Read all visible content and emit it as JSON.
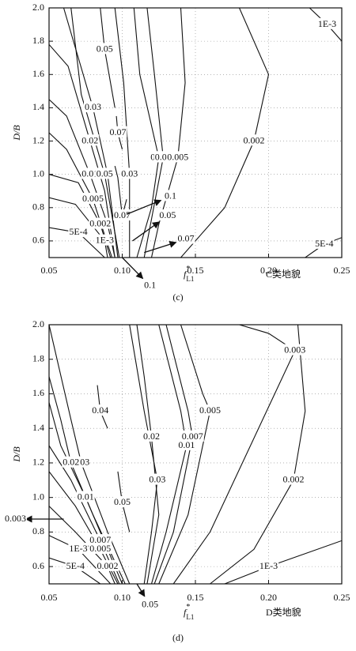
{
  "chart_data": [
    {
      "type": "contour",
      "caption": "(c)",
      "terrain": "C类地貌",
      "xlabel": "f",
      "xlabel_sup": "*",
      "xlabel_sub": "L1",
      "ylabel": "D/B",
      "color": "#111111",
      "grid": true,
      "xlim": [
        0.05,
        0.25
      ],
      "ylim": [
        0.5,
        2.0
      ],
      "xticks": [
        0.05,
        {
          "value": 0.1,
          "label": "0.10"
        },
        0.15,
        {
          "value": 0.2,
          "label": "0.20"
        },
        0.25
      ],
      "yticks": [
        0.6,
        0.8,
        {
          "value": 1.0,
          "label": "1.0"
        },
        1.2,
        1.4,
        1.6,
        1.8,
        {
          "value": 2.0,
          "label": "2.0"
        }
      ],
      "contours": [
        {
          "label": "0.03",
          "x": [
            0.06,
            0.065,
            0.08,
            0.09,
            0.097
          ],
          "y": [
            2.0,
            1.85,
            1.4,
            1.0,
            0.5
          ]
        },
        {
          "label": "0.02",
          "x": [
            0.05,
            0.063,
            0.078,
            0.088,
            0.095
          ],
          "y": [
            1.78,
            1.65,
            1.2,
            0.9,
            0.5
          ]
        },
        {
          "label": "0.01",
          "x": [
            0.05,
            0.062,
            0.078,
            0.09,
            0.095
          ],
          "y": [
            1.45,
            1.35,
            1.0,
            0.7,
            0.5
          ]
        },
        {
          "label": "0.005",
          "x": [
            0.05,
            0.062,
            0.08,
            0.093
          ],
          "y": [
            1.25,
            1.15,
            0.85,
            0.5
          ]
        },
        {
          "label": "0.002",
          "x": [
            0.05,
            0.07,
            0.085,
            0.092
          ],
          "y": [
            1.0,
            0.95,
            0.7,
            0.5
          ]
        },
        {
          "label": "1E-3",
          "x": [
            0.05,
            0.068,
            0.088,
            0.09
          ],
          "y": [
            0.86,
            0.82,
            0.6,
            0.5
          ]
        },
        {
          "label": "5E-4",
          "x": [
            0.05,
            0.07,
            0.088
          ],
          "y": [
            0.68,
            0.65,
            0.5
          ]
        },
        {
          "label": "0.05",
          "x": [
            0.065,
            0.072,
            0.088,
            0.098
          ],
          "y": [
            2.0,
            1.48,
            1.0,
            0.5
          ]
        },
        {
          "label": "0.05",
          "x": [
            0.085,
            0.088,
            0.095
          ],
          "y": [
            2.0,
            1.75,
            1.4
          ]
        },
        {
          "label": "0.03",
          "x": [
            0.095,
            0.101,
            0.105,
            0.105
          ],
          "y": [
            2.0,
            1.55,
            1.0,
            0.5
          ]
        },
        {
          "label": "0.02",
          "x": [
            0.108,
            0.112,
            0.125,
            0.12,
            0.11
          ],
          "y": [
            2.0,
            1.6,
            1.1,
            0.8,
            0.5
          ]
        },
        {
          "label": "0.01",
          "x": [
            0.117,
            0.122,
            0.128,
            0.115
          ],
          "y": [
            2.0,
            1.6,
            1.1,
            0.5
          ]
        },
        {
          "label": "0.005",
          "x": [
            0.14,
            0.143,
            0.138,
            0.125,
            0.12
          ],
          "y": [
            2.0,
            1.55,
            1.1,
            0.7,
            0.5
          ]
        },
        {
          "label": "0.002",
          "x": [
            0.18,
            0.2,
            0.19,
            0.17,
            0.14
          ],
          "y": [
            2.0,
            1.6,
            1.2,
            0.8,
            0.5
          ]
        },
        {
          "label": "1E-3",
          "x": [
            0.228,
            0.24,
            0.25
          ],
          "y": [
            2.0,
            1.9,
            1.8
          ]
        },
        {
          "label": "5E-4",
          "x": [
            0.225,
            0.238,
            0.25
          ],
          "y": [
            0.5,
            0.58,
            0.62
          ]
        },
        {
          "label": "0.07",
          "x": [
            0.096,
            0.097,
            0.1
          ],
          "y": [
            1.35,
            1.25,
            1.15
          ]
        },
        {
          "label": "0.07",
          "x": [
            0.095,
            0.097,
            0.1,
            0.103
          ],
          "y": [
            1.05,
            0.98,
            0.75,
            0.85
          ]
        }
      ],
      "annotations": [
        {
          "text": "0.1",
          "x": 0.133,
          "y": 0.867,
          "ax": 0.103,
          "ay": 0.76
        },
        {
          "text": "0.05",
          "x": 0.131,
          "y": 0.75,
          "ax": 0.107,
          "ay": 0.6
        },
        {
          "text": "0.07",
          "x": 0.1435,
          "y": 0.61,
          "ax": 0.115,
          "ay": 0.53
        },
        {
          "text": "0.1",
          "x": 0.119,
          "y": 0.33,
          "ax": 0.1,
          "ay": 0.5
        }
      ]
    },
    {
      "type": "contour",
      "caption": "(d)",
      "terrain": "D类地貌",
      "xlabel": "f",
      "xlabel_sup": "*",
      "xlabel_sub": "L1",
      "ylabel": "D/B",
      "color": "#111111",
      "grid": true,
      "xlim": [
        0.05,
        0.25
      ],
      "ylim": [
        0.5,
        2.0
      ],
      "xticks": [
        0.05,
        {
          "value": 0.1,
          "label": "0.10"
        },
        0.15,
        {
          "value": 0.2,
          "label": "0.20"
        },
        0.25
      ],
      "yticks": [
        0.6,
        0.8,
        {
          "value": 1.0,
          "label": "1.0"
        },
        1.2,
        1.4,
        1.6,
        1.8,
        {
          "value": 2.0,
          "label": "2.0"
        }
      ],
      "contours": [
        {
          "label": "0.04",
          "x": [
            0.083,
            0.085,
            0.09
          ],
          "y": [
            1.65,
            1.5,
            1.4
          ]
        },
        {
          "label": "0.03",
          "x": [
            0.05,
            0.065,
            0.072,
            0.09,
            0.105
          ],
          "y": [
            2.0,
            1.45,
            1.2,
            0.8,
            0.5
          ]
        },
        {
          "label": "0.02",
          "x": [
            0.05,
            0.058,
            0.065,
            0.08,
            0.102
          ],
          "y": [
            1.7,
            1.45,
            1.2,
            0.9,
            0.5
          ]
        },
        {
          "label": "0.01",
          "x": [
            0.05,
            0.058,
            0.075,
            0.1
          ],
          "y": [
            1.55,
            1.3,
            1.0,
            0.5
          ]
        },
        {
          "label": "0.007",
          "x": [
            0.05,
            0.065,
            0.085,
            0.098
          ],
          "y": [
            1.3,
            1.1,
            0.75,
            0.5
          ]
        },
        {
          "label": "0.005",
          "x": [
            0.05,
            0.068,
            0.085,
            0.097
          ],
          "y": [
            1.15,
            0.95,
            0.7,
            0.5
          ]
        },
        {
          "label": "0.002",
          "x": [
            0.05,
            0.068,
            0.09,
            0.095
          ],
          "y": [
            0.95,
            0.8,
            0.6,
            0.5
          ]
        },
        {
          "label": "1E-3",
          "x": [
            0.05,
            0.07,
            0.092
          ],
          "y": [
            0.78,
            0.7,
            0.5
          ]
        },
        {
          "label": "5E-4",
          "x": [
            0.05,
            0.068,
            0.085
          ],
          "y": [
            0.65,
            0.6,
            0.5
          ]
        },
        {
          "label": "0.05",
          "x": [
            0.097,
            0.1,
            0.105
          ],
          "y": [
            1.15,
            0.97,
            0.8
          ]
        },
        {
          "label": "0.03",
          "x": [
            0.105,
            0.115,
            0.124,
            0.12,
            0.115
          ],
          "y": [
            2.0,
            1.5,
            1.1,
            0.8,
            0.5
          ]
        },
        {
          "label": "0.02",
          "x": [
            0.11,
            0.115,
            0.12,
            0.125,
            0.117
          ],
          "y": [
            2.0,
            1.7,
            1.35,
            0.9,
            0.5
          ]
        },
        {
          "label": "0.01",
          "x": [
            0.125,
            0.14,
            0.144,
            0.13,
            0.12
          ],
          "y": [
            2.0,
            1.5,
            1.3,
            0.8,
            0.5
          ]
        },
        {
          "label": "0.007",
          "x": [
            0.13,
            0.145,
            0.148,
            0.135,
            0.122
          ],
          "y": [
            2.0,
            1.5,
            1.35,
            0.8,
            0.5
          ]
        },
        {
          "label": "0.005",
          "x": [
            0.14,
            0.155,
            0.16,
            0.145,
            0.125
          ],
          "y": [
            2.0,
            1.6,
            1.5,
            0.9,
            0.5
          ]
        },
        {
          "label": "0.003",
          "x": [
            0.18,
            0.2,
            0.218,
            0.16,
            0.135
          ],
          "y": [
            2.0,
            1.95,
            1.85,
            0.8,
            0.5
          ]
        },
        {
          "label": "0.002",
          "x": [
            0.22,
            0.225,
            0.217,
            0.19,
            0.16
          ],
          "y": [
            2.0,
            1.5,
            1.1,
            0.7,
            0.5
          ]
        },
        {
          "label": "1E-3",
          "x": [
            0.17,
            0.2,
            0.25
          ],
          "y": [
            0.5,
            0.6,
            0.75
          ]
        }
      ],
      "annotations": [
        {
          "text": "0.003",
          "x": 0.027,
          "y": 0.875,
          "ax": 0.06,
          "ay": 0.875
        },
        {
          "text": "0.05",
          "x": 0.119,
          "y": 0.377,
          "ax": 0.11,
          "ay": 0.5
        }
      ]
    }
  ]
}
